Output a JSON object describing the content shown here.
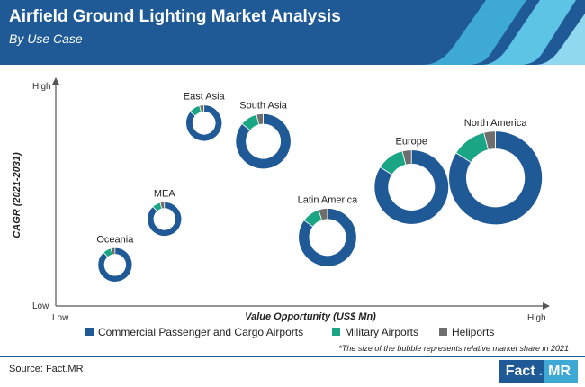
{
  "header": {
    "title": "Airfield Ground Lighting Market Analysis",
    "subtitle": "By Use Case"
  },
  "colors": {
    "header_bg": "#1f5a96",
    "accent_light": "#5ec4e6",
    "commercial": "#1f5a96",
    "military": "#1aa584",
    "heliports": "#6e6e6e"
  },
  "chart_data": {
    "type": "bubble-donut",
    "xlabel": "Value Opportunity (US$ Mn)",
    "ylabel": "CAGR (2021-2031)",
    "x_ticks": {
      "low": "Low",
      "high": "High"
    },
    "y_ticks": {
      "low": "Low",
      "high": "High"
    },
    "legend": {
      "placement": "bottom",
      "entries": [
        "Commercial Passenger and Cargo Airports",
        "Military Airports",
        "Heliports"
      ]
    },
    "note": "*The size of the bubble represents relative market share in 2021",
    "series": [
      {
        "name": "Commercial Passenger and Cargo Airports",
        "color": "#1f5a96"
      },
      {
        "name": "Military Airports",
        "color": "#1aa584"
      },
      {
        "name": "Heliports",
        "color": "#6e6e6e"
      }
    ],
    "points": [
      {
        "region": "Oceania",
        "value_opportunity": 0.12,
        "cagr": 0.18,
        "relative_size": 0.38,
        "shares": [
          0.88,
          0.08,
          0.04
        ]
      },
      {
        "region": "MEA",
        "value_opportunity": 0.22,
        "cagr": 0.38,
        "relative_size": 0.38,
        "shares": [
          0.88,
          0.08,
          0.04
        ]
      },
      {
        "region": "East Asia",
        "value_opportunity": 0.3,
        "cagr": 0.8,
        "relative_size": 0.4,
        "shares": [
          0.86,
          0.1,
          0.04
        ]
      },
      {
        "region": "South Asia",
        "value_opportunity": 0.42,
        "cagr": 0.72,
        "relative_size": 0.6,
        "shares": [
          0.86,
          0.1,
          0.04
        ]
      },
      {
        "region": "Latin America",
        "value_opportunity": 0.55,
        "cagr": 0.3,
        "relative_size": 0.63,
        "shares": [
          0.85,
          0.1,
          0.05
        ]
      },
      {
        "region": "Europe",
        "value_opportunity": 0.72,
        "cagr": 0.52,
        "relative_size": 0.8,
        "shares": [
          0.84,
          0.12,
          0.04
        ]
      },
      {
        "region": "North America",
        "value_opportunity": 0.89,
        "cagr": 0.56,
        "relative_size": 1.0,
        "shares": [
          0.84,
          0.12,
          0.04
        ]
      }
    ]
  },
  "footer": {
    "source": "Source: Fact.MR",
    "logo_fact": "Fact",
    "logo_dot": ".",
    "logo_mr": "MR"
  }
}
